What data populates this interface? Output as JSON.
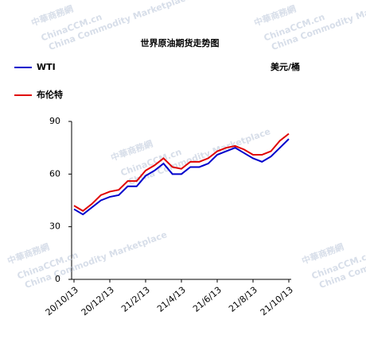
{
  "chart_data": {
    "type": "line",
    "title": "世界原油期货走势图",
    "unit": "美元/桶",
    "categories": [
      "20/10/13",
      null,
      null,
      null,
      "20/12/13",
      null,
      null,
      null,
      "21/2/13",
      null,
      null,
      null,
      "21/4/13",
      null,
      null,
      null,
      "21/6/13",
      null,
      null,
      null,
      "21/8/13",
      null,
      null,
      null,
      "21/10/13"
    ],
    "series": [
      {
        "name": "WTI",
        "color": "#0000cc",
        "values": [
          40,
          37,
          41,
          45,
          47,
          48,
          53,
          53,
          59,
          62,
          66,
          60,
          60,
          64,
          64,
          66,
          71,
          73,
          75,
          72,
          69,
          67,
          70,
          75,
          80
        ]
      },
      {
        "name": "布伦特",
        "color": "#e00000",
        "values": [
          42,
          39,
          43,
          48,
          50,
          51,
          56,
          56,
          62,
          65,
          69,
          64,
          63,
          67,
          67,
          69,
          73,
          75,
          76,
          74,
          71,
          71,
          73,
          79,
          83
        ]
      }
    ],
    "ylim": [
      0,
      90
    ],
    "yticks": [
      0,
      30,
      60,
      90
    ],
    "grid": false
  },
  "watermark": {
    "brand": "中華商務網",
    "site": "ChinaCCM.cn",
    "slogan": "China Commodity Marketplace"
  }
}
